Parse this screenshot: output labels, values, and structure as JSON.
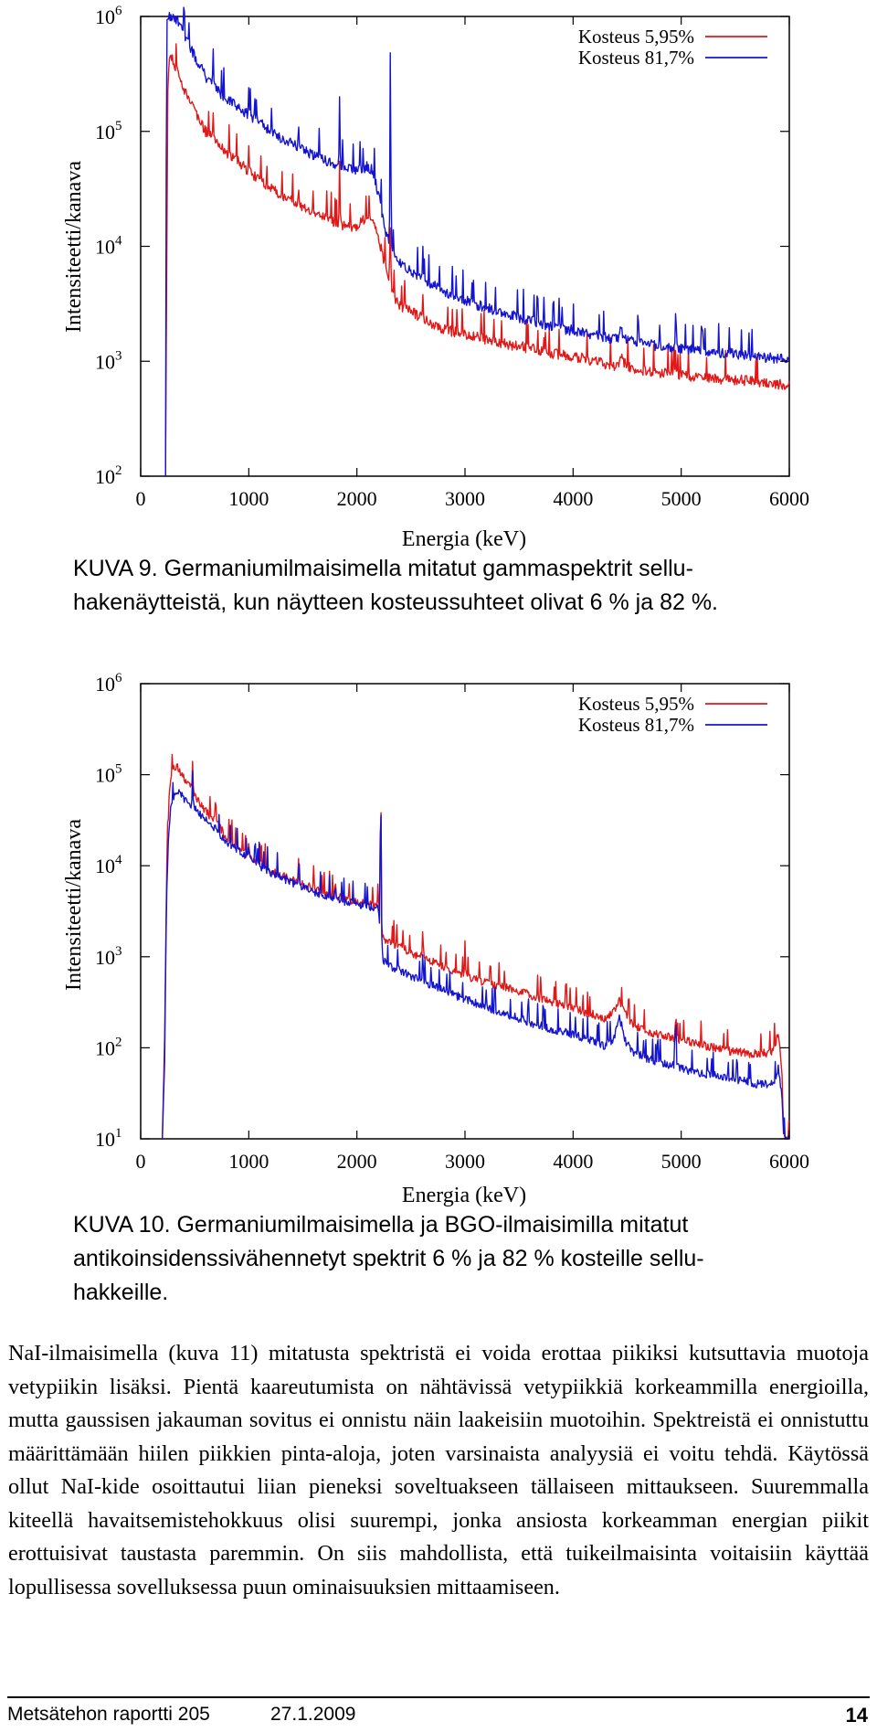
{
  "figures": [
    {
      "caption": [
        "KUVA 9. Germaniumilmaisimella mitatut gammaspektrit sellu-",
        "hakenäytteistä, kun näytteen kosteussuhteet olivat 6 % ja 82 %."
      ],
      "chart_data": {
        "type": "line",
        "title": "",
        "xlabel": "Energia (keV)",
        "ylabel": "Intensiteetti/kanava",
        "xlim": [
          0,
          6000
        ],
        "ylim": [
          100,
          1000000
        ],
        "y_scale": "log",
        "x_ticks": [
          "0",
          "1000",
          "2000",
          "3000",
          "4000",
          "5000",
          "6000"
        ],
        "y_ticks": [
          {
            "base": "10",
            "exp": "2"
          },
          {
            "base": "10",
            "exp": "3"
          },
          {
            "base": "10",
            "exp": "4"
          },
          {
            "base": "10",
            "exp": "5"
          },
          {
            "base": "10",
            "exp": "6"
          }
        ],
        "legend_position": "top-right",
        "grid": false,
        "series": [
          {
            "name": "Kosteus 5,95%",
            "color": "#e01818",
            "x": [
              230,
              250,
              270,
              300,
              350,
              400,
              500,
              600,
              700,
              800,
              900,
              1000,
              1100,
              1200,
              1300,
              1400,
              1500,
              1600,
              1700,
              1800,
              1900,
              2000,
              2050,
              2100,
              2150,
              2200,
              2230,
              2250,
              2270,
              2300,
              2330,
              2360,
              2400,
              2500,
              2600,
              2700,
              2800,
              2900,
              3000,
              3200,
              3400,
              3600,
              3800,
              4000,
              4200,
              4400,
              4450,
              4500,
              4600,
              4800,
              5000,
              5200,
              5400,
              5600,
              5800,
              6000
            ],
            "y": [
              100,
              200000,
              500000,
              400000,
              320000,
              230000,
              150000,
              100000,
              80000,
              65000,
              55000,
              45000,
              38000,
              32000,
              28000,
              25000,
              22000,
              20000,
              18000,
              16000,
              15000,
              15000,
              16500,
              18500,
              17000,
              12000,
              9000,
              7500,
              6000,
              5000,
              4000,
              3400,
              3000,
              2700,
              2400,
              2100,
              1900,
              1800,
              1700,
              1550,
              1400,
              1300,
              1180,
              1100,
              1000,
              900,
              1050,
              900,
              850,
              800,
              760,
              720,
              700,
              680,
              650,
              620
            ],
            "peaks": [
              {
                "x": 670,
                "y": 160000
              },
              {
                "x": 1000,
                "y": 75000
              },
              {
                "x": 1460,
                "y": 35000
              },
              {
                "x": 1840,
                "y": 55000
              },
              {
                "x": 2310,
                "y": 18000
              },
              {
                "x": 2610,
                "y": 3800
              },
              {
                "x": 3730,
                "y": 1600
              },
              {
                "x": 4440,
                "y": 1150
              }
            ]
          },
          {
            "name": "Kosteus 81,7%",
            "color": "#1414d0",
            "x": [
              230,
              240,
              250,
              270,
              300,
              350,
              400,
              500,
              600,
              700,
              800,
              900,
              1000,
              1100,
              1200,
              1300,
              1400,
              1500,
              1600,
              1700,
              1800,
              1900,
              2000,
              2050,
              2100,
              2150,
              2200,
              2230,
              2250,
              2270,
              2300,
              2330,
              2360,
              2400,
              2500,
              2600,
              2700,
              2800,
              2900,
              3000,
              3200,
              3400,
              3600,
              3800,
              4000,
              4200,
              4400,
              4450,
              4500,
              4600,
              4800,
              5000,
              5200,
              5400,
              5600,
              5800,
              6000
            ],
            "y": [
              100,
              900000,
              1000000,
              1000000,
              1000000,
              900000,
              700000,
              450000,
              300000,
              230000,
              190000,
              160000,
              140000,
              120000,
              100000,
              88000,
              78000,
              70000,
              62000,
              56000,
              51000,
              47000,
              45000,
              47000,
              50000,
              45000,
              28000,
              20000,
              16000,
              13000,
              11000,
              9500,
              8000,
              7000,
              6000,
              5200,
              4600,
              4100,
              3700,
              3400,
              2900,
              2550,
              2250,
              2000,
              1850,
              1700,
              1550,
              1800,
              1500,
              1450,
              1350,
              1300,
              1230,
              1180,
              1130,
              1080,
              1030
            ],
            "peaks": [
              {
                "x": 670,
                "y": 600000
              },
              {
                "x": 1000,
                "y": 240000
              },
              {
                "x": 1460,
                "y": 130000
              },
              {
                "x": 1840,
                "y": 200000
              },
              {
                "x": 2310,
                "y": 1000000
              },
              {
                "x": 2610,
                "y": 10000
              },
              {
                "x": 3730,
                "y": 3600
              },
              {
                "x": 4440,
                "y": 2200
              },
              {
                "x": 4950,
                "y": 3500
              }
            ]
          }
        ]
      }
    },
    {
      "caption": [
        "KUVA 10. Germaniumilmaisimella ja BGO-ilmaisimilla mitatut",
        "antikoinsidenssivähennetyt spektrit 6 % ja 82 % kosteille sellu-",
        "hakkeille."
      ],
      "chart_data": {
        "type": "line",
        "title": "",
        "xlabel": "Energia (keV)",
        "ylabel": "Intensiteetti/kanava",
        "xlim": [
          0,
          6000
        ],
        "ylim": [
          10,
          1000000
        ],
        "y_scale": "log",
        "x_ticks": [
          "0",
          "1000",
          "2000",
          "3000",
          "4000",
          "5000",
          "6000"
        ],
        "y_ticks": [
          {
            "base": "10",
            "exp": "1"
          },
          {
            "base": "10",
            "exp": "2"
          },
          {
            "base": "10",
            "exp": "3"
          },
          {
            "base": "10",
            "exp": "4"
          },
          {
            "base": "10",
            "exp": "5"
          },
          {
            "base": "10",
            "exp": "6"
          }
        ],
        "legend_position": "top-right",
        "grid": false,
        "series": [
          {
            "name": "Kosteus 5,95%",
            "color": "#e01818",
            "x": [
              200,
              220,
              240,
              260,
              280,
              300,
              350,
              400,
              450,
              500,
              600,
              700,
              800,
              900,
              1000,
              1100,
              1200,
              1300,
              1400,
              1500,
              1600,
              1700,
              1800,
              1900,
              2000,
              2100,
              2150,
              2200,
              2220,
              2250,
              2300,
              2400,
              2500,
              2600,
              2800,
              3000,
              3200,
              3400,
              3600,
              3800,
              4000,
              4200,
              4300,
              4380,
              4430,
              4480,
              4550,
              4700,
              4900,
              5100,
              5300,
              5500,
              5700,
              5850,
              5900,
              5930,
              5950
            ],
            "y": [
              10,
              100,
              8000,
              50000,
              100000,
              120000,
              120000,
              90000,
              80000,
              60000,
              40000,
              30000,
              20000,
              16000,
              13000,
              10500,
              9000,
              8000,
              7000,
              6200,
              5600,
              5000,
              4600,
              4300,
              4000,
              3800,
              3700,
              4000,
              2000,
              1600,
              1450,
              1300,
              1100,
              1000,
              780,
              620,
              520,
              450,
              380,
              320,
              270,
              230,
              210,
              250,
              330,
              240,
              180,
              150,
              130,
              115,
              100,
              90,
              85,
              90,
              150,
              60,
              10
            ],
            "peaks": [
              {
                "x": 480,
                "y": 140000
              },
              {
                "x": 1000,
                "y": 20000
              },
              {
                "x": 1460,
                "y": 12000
              },
              {
                "x": 1600,
                "y": 10000
              },
              {
                "x": 1800,
                "y": 8000
              },
              {
                "x": 2220,
                "y": 380000
              },
              {
                "x": 2610,
                "y": 2500
              },
              {
                "x": 3000,
                "y": 1500
              },
              {
                "x": 3700,
                "y": 600
              },
              {
                "x": 4950,
                "y": 300
              }
            ]
          },
          {
            "name": "Kosteus 81,7%",
            "color": "#1414d0",
            "x": [
              200,
              220,
              240,
              260,
              280,
              300,
              350,
              400,
              450,
              500,
              600,
              700,
              800,
              900,
              1000,
              1100,
              1200,
              1300,
              1400,
              1500,
              1600,
              1700,
              1800,
              1900,
              2000,
              2100,
              2150,
              2200,
              2220,
              2250,
              2300,
              2400,
              2500,
              2600,
              2800,
              3000,
              3200,
              3400,
              3600,
              3800,
              4000,
              4200,
              4300,
              4380,
              4430,
              4480,
              4550,
              4700,
              4900,
              5100,
              5300,
              5500,
              5700,
              5850,
              5900,
              5930,
              5950
            ],
            "y": [
              10,
              60,
              5000,
              25000,
              45000,
              55000,
              65000,
              55000,
              50000,
              42000,
              32000,
              25000,
              18000,
              15000,
              12000,
              10000,
              8500,
              7500,
              6500,
              5800,
              5200,
              4700,
              4300,
              4000,
              3800,
              3600,
              3500,
              3700,
              1200,
              900,
              800,
              700,
              620,
              550,
              430,
              340,
              280,
              230,
              190,
              160,
              140,
              115,
              105,
              130,
              220,
              120,
              90,
              75,
              65,
              55,
              50,
              45,
              40,
              40,
              60,
              30,
              10
            ],
            "peaks": [
              {
                "x": 480,
                "y": 110000
              },
              {
                "x": 1000,
                "y": 18000
              },
              {
                "x": 1460,
                "y": 9000
              },
              {
                "x": 1800,
                "y": 7000
              },
              {
                "x": 2220,
                "y": 500000
              },
              {
                "x": 2610,
                "y": 1400
              },
              {
                "x": 4950,
                "y": 400
              }
            ]
          }
        ]
      }
    }
  ],
  "body_text": "NaI-ilmaisimella (kuva 11) mitatusta spektristä ei voida erottaa piikiksi kutsuttavia muotoja vetypiikin lisäksi. Pientä kaareutumista on nähtävissä vetypiikkiä korkeammilla energioilla, mutta gaussisen jakauman sovitus ei onnistu näin laakeisiin muotoihin. Spektreistä ei onnistuttu määrittämään hiilen piikkien pinta-aloja, joten varsinaista analyysiä ei voitu tehdä. Käytössä ollut NaI-kide osoittautui liian pieneksi soveltuakseen tällaiseen mittaukseen. Suuremmalla kiteellä havaitsemistehokkuus olisi suurempi, jonka ansiosta korkeamman energian piikit erottuisivat taustasta paremmin. On siis mahdollista, että tuikeilmaisinta voitaisiin käyttää lopullisessa sovelluksessa puun ominaisuuksien mittaamiseen.",
  "footer": {
    "report": "Metsätehon raportti 205",
    "date": "27.1.2009",
    "page": "14"
  }
}
